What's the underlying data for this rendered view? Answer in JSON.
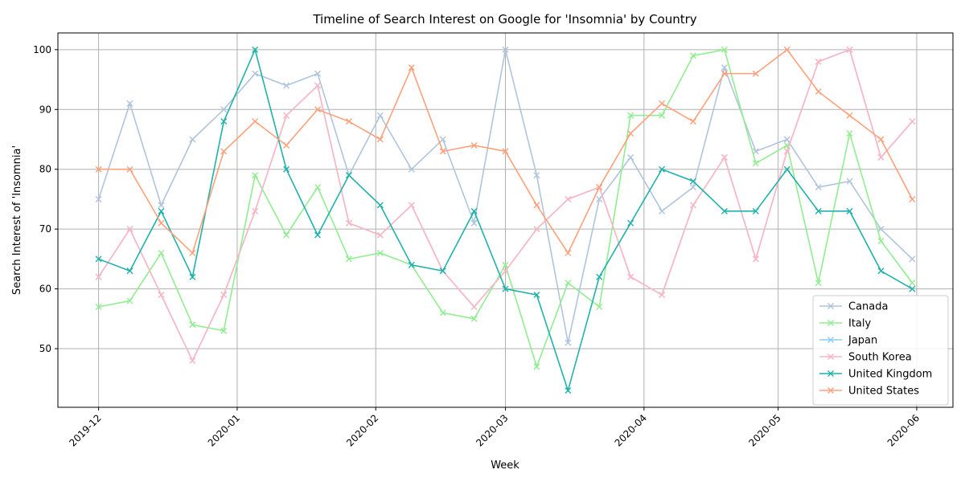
{
  "chart_data": {
    "type": "line",
    "title": "Timeline of Search Interest on Google for 'Insomnia' by Country",
    "xlabel": "Week",
    "ylabel": "Search Interest of 'Insomnia'",
    "x": [
      "2019-12-01",
      "2019-12-08",
      "2019-12-15",
      "2019-12-22",
      "2019-12-29",
      "2020-01-05",
      "2020-01-12",
      "2020-01-19",
      "2020-01-26",
      "2020-02-02",
      "2020-02-09",
      "2020-02-16",
      "2020-02-23",
      "2020-03-01",
      "2020-03-08",
      "2020-03-15",
      "2020-03-22",
      "2020-03-29",
      "2020-04-05",
      "2020-04-12",
      "2020-04-19",
      "2020-04-26",
      "2020-05-03",
      "2020-05-10",
      "2020-05-17",
      "2020-05-24",
      "2020-05-31"
    ],
    "xticks": [
      "2019-12",
      "2020-01",
      "2020-02",
      "2020-03",
      "2020-04",
      "2020-05",
      "2020-06"
    ],
    "yticks": [
      50,
      60,
      70,
      80,
      90,
      100
    ],
    "ylim": [
      40.2,
      102.8
    ],
    "grid": true,
    "legend_position": "lower-right",
    "marker": "x",
    "series": [
      {
        "name": "Canada",
        "color": "#B0C4DE",
        "values": [
          75,
          91,
          74,
          85,
          90,
          96,
          94,
          96,
          79,
          89,
          80,
          85,
          71,
          100,
          79,
          51,
          75,
          82,
          73,
          77,
          97,
          83,
          85,
          77,
          78,
          70,
          65
        ]
      },
      {
        "name": "Italy",
        "color": "#90EE90",
        "values": [
          57,
          58,
          66,
          54,
          53,
          79,
          69,
          77,
          65,
          66,
          64,
          56,
          55,
          64,
          47,
          61,
          57,
          89,
          89,
          99,
          100,
          81,
          84,
          61,
          86,
          68,
          61
        ]
      },
      {
        "name": "Japan",
        "color": "#87CEFA",
        "values": [
          62,
          70,
          59,
          48,
          59,
          73,
          89,
          94,
          71,
          69,
          74,
          63,
          57,
          63,
          70,
          75,
          77,
          62,
          59,
          74,
          82,
          65,
          83,
          98,
          100,
          82,
          88
        ]
      },
      {
        "name": "South Korea",
        "color": "#FFB6C1",
        "values": [
          62,
          70,
          59,
          48,
          59,
          73,
          89,
          94,
          71,
          69,
          74,
          63,
          57,
          63,
          70,
          75,
          77,
          62,
          59,
          74,
          82,
          65,
          83,
          98,
          100,
          82,
          88
        ]
      },
      {
        "name": "United Kingdom",
        "color": "#20B2AA",
        "values": [
          65,
          63,
          73,
          62,
          88,
          100,
          80,
          69,
          79,
          74,
          64,
          63,
          73,
          60,
          59,
          43,
          62,
          71,
          80,
          78,
          73,
          73,
          80,
          73,
          73,
          63,
          60
        ]
      },
      {
        "name": "United States",
        "color": "#FFA07A",
        "values": [
          80,
          80,
          71,
          66,
          83,
          88,
          84,
          90,
          88,
          85,
          97,
          83,
          84,
          83,
          74,
          66,
          77,
          86,
          91,
          88,
          96,
          96,
          100,
          93,
          89,
          85,
          75
        ]
      }
    ]
  }
}
